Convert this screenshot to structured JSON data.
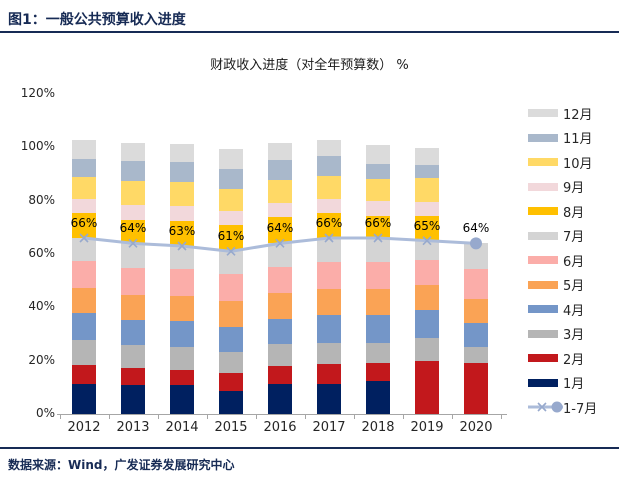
{
  "page": {
    "figure_title": "图1：一般公共预算收入进度",
    "source_text": "数据来源：Wind，广发证券发展研究中心"
  },
  "colors": {
    "accent_navy": "#172B55",
    "axis_gray": "#A6A6A6",
    "line_blue": "#ACBCDA"
  },
  "chart_data": {
    "type": "bar",
    "stacked": true,
    "title": "财政收入进度（对全年预算数） %",
    "categories": [
      "2012",
      "2013",
      "2014",
      "2015",
      "2016",
      "2017",
      "2018",
      "2019",
      "2020"
    ],
    "series": [
      {
        "name": "1月",
        "color": "#002060",
        "values": [
          11.3,
          10.8,
          10.8,
          8.7,
          11.2,
          11.4,
          12.5,
          0,
          0
        ]
      },
      {
        "name": "2月",
        "color": "#C2181C",
        "values": [
          7.0,
          6.3,
          5.7,
          6.5,
          6.8,
          7.3,
          6.5,
          20.0,
          19.0
        ]
      },
      {
        "name": "3月",
        "color": "#B5B5B5",
        "values": [
          9.4,
          8.8,
          8.8,
          8.2,
          8.3,
          7.8,
          7.8,
          8.4,
          6.3
        ]
      },
      {
        "name": "4月",
        "color": "#7496C8",
        "values": [
          10.0,
          9.4,
          9.4,
          9.4,
          9.3,
          10.7,
          10.4,
          10.5,
          8.8
        ]
      },
      {
        "name": "5月",
        "color": "#FAA355",
        "values": [
          9.6,
          9.5,
          9.5,
          9.5,
          9.8,
          9.7,
          9.5,
          9.3,
          9.0
        ]
      },
      {
        "name": "6月",
        "color": "#FBADA9",
        "values": [
          10.1,
          10.0,
          10.0,
          10.2,
          9.6,
          10.1,
          10.3,
          9.5,
          11.1
        ]
      },
      {
        "name": "7月",
        "color": "#D4D4D4",
        "values": [
          8.6,
          9.2,
          8.8,
          8.5,
          9.0,
          9.0,
          9.0,
          7.3,
          9.8
        ]
      },
      {
        "name": "8月",
        "color": "#FFC000",
        "values": [
          9.4,
          8.8,
          9.5,
          9.8,
          9.8,
          9.2,
          8.4,
          9.3,
          0
        ]
      },
      {
        "name": "9月",
        "color": "#F2D8DB",
        "values": [
          5.2,
          5.6,
          5.6,
          5.4,
          5.3,
          5.6,
          5.4,
          5.1,
          0
        ]
      },
      {
        "name": "10月",
        "color": "#FFD966",
        "values": [
          8.2,
          8.8,
          8.8,
          8.2,
          8.8,
          8.6,
          8.4,
          9.0,
          0
        ]
      },
      {
        "name": "11月",
        "color": "#A9B8CB",
        "values": [
          6.9,
          7.6,
          7.6,
          7.6,
          7.3,
          7.5,
          5.6,
          4.8,
          0
        ]
      },
      {
        "name": "12月",
        "color": "#DBDBDB",
        "values": [
          7.2,
          6.9,
          6.9,
          7.2,
          6.6,
          5.9,
          7.0,
          6.5,
          0
        ]
      }
    ],
    "line_series": {
      "name": "1-7月",
      "color": "#ACBCDA",
      "marker_color": "#97A9CD",
      "values": [
        66,
        64,
        63,
        61,
        64,
        66,
        66,
        65,
        64
      ],
      "labels": [
        "66%",
        "64%",
        "63%",
        "61%",
        "64%",
        "66%",
        "66%",
        "65%",
        "64%"
      ]
    },
    "ylabel": "",
    "xlabel": "",
    "ylim": [
      0,
      120
    ],
    "yticks": [
      "0%",
      "20%",
      "40%",
      "60%",
      "80%",
      "100%",
      "120%"
    ],
    "grid": false,
    "legend_position": "right",
    "legend_order_note": "12月 at top down to 1月, then 1-7月 line entry"
  }
}
